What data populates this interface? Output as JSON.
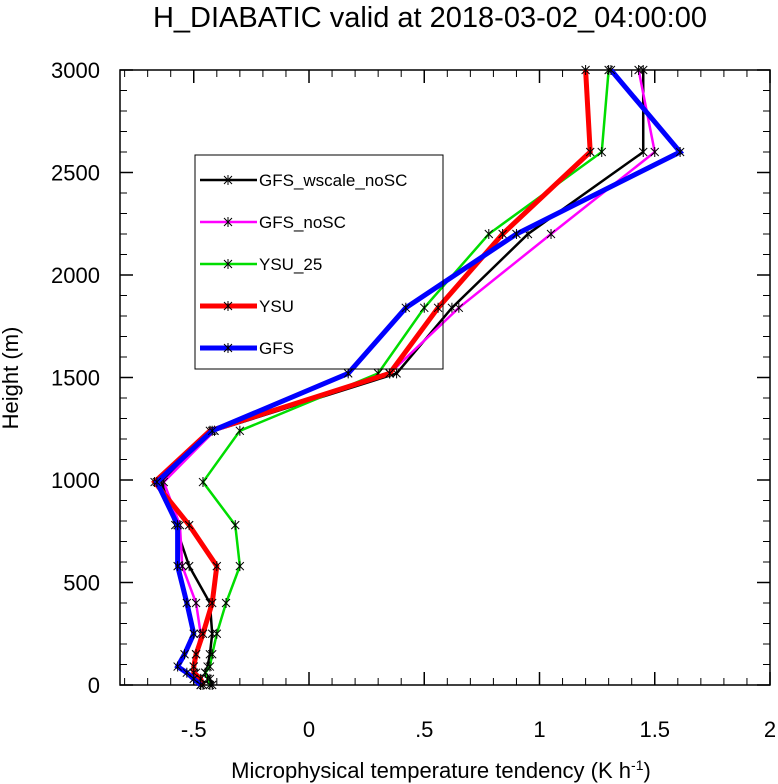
{
  "chart_data": {
    "type": "line",
    "title": "H_DIABATIC valid at 2018-03-02_04:00:00",
    "xlabel": "Microphysical temperature tendency (K h",
    "xlabel_sup": "-1",
    "xlabel_end": ")",
    "ylabel": "Height (m)",
    "xlim": [
      -0.82,
      2.0
    ],
    "ylim": [
      0,
      3000
    ],
    "x_ticks": [
      -0.5,
      0,
      0.5,
      1,
      1.5,
      2
    ],
    "x_tick_labels": [
      "-.5",
      "0",
      ".5",
      "1",
      "1.5",
      "2"
    ],
    "y_ticks": [
      0,
      500,
      1000,
      1500,
      2000,
      2500,
      3000
    ],
    "y_tick_labels": [
      "0",
      "500",
      "1000",
      "1500",
      "2000",
      "2500",
      "3000"
    ],
    "heights": [
      0,
      30,
      60,
      90,
      150,
      250,
      400,
      580,
      780,
      990,
      1240,
      1520,
      1840,
      2200,
      2600,
      3000
    ],
    "legend_position": "upper-left",
    "series": [
      {
        "name": "GFS_wscale_noSC",
        "color": "#000000",
        "width": 2.5,
        "x": [
          -0.42,
          -0.43,
          -0.45,
          -0.44,
          -0.43,
          -0.42,
          -0.43,
          -0.52,
          -0.58,
          -0.64,
          -0.41,
          0.38,
          0.62,
          0.95,
          1.45,
          1.45
        ]
      },
      {
        "name": "GFS_noSC",
        "color": "#ff00ff",
        "width": 2.5,
        "x": [
          -0.47,
          -0.48,
          -0.49,
          -0.5,
          -0.49,
          -0.47,
          -0.49,
          -0.55,
          -0.56,
          -0.63,
          -0.41,
          0.35,
          0.65,
          1.05,
          1.5,
          1.43
        ]
      },
      {
        "name": "YSU_25",
        "color": "#00dd00",
        "width": 2.5,
        "x": [
          -0.43,
          -0.44,
          -0.45,
          -0.43,
          -0.42,
          -0.4,
          -0.36,
          -0.3,
          -0.32,
          -0.46,
          -0.3,
          0.3,
          0.5,
          0.78,
          1.27,
          1.3
        ]
      },
      {
        "name": "YSU",
        "color": "#ff0000",
        "width": 5,
        "x": [
          -0.46,
          -0.47,
          -0.5,
          -0.5,
          -0.49,
          -0.46,
          -0.42,
          -0.4,
          -0.52,
          -0.67,
          -0.43,
          0.35,
          0.56,
          0.84,
          1.22,
          1.2
        ]
      },
      {
        "name": "GFS",
        "color": "#0000ff",
        "width": 5,
        "x": [
          -0.47,
          -0.5,
          -0.53,
          -0.57,
          -0.54,
          -0.5,
          -0.53,
          -0.57,
          -0.57,
          -0.66,
          -0.42,
          0.17,
          0.42,
          0.9,
          1.61,
          1.31
        ]
      }
    ]
  }
}
